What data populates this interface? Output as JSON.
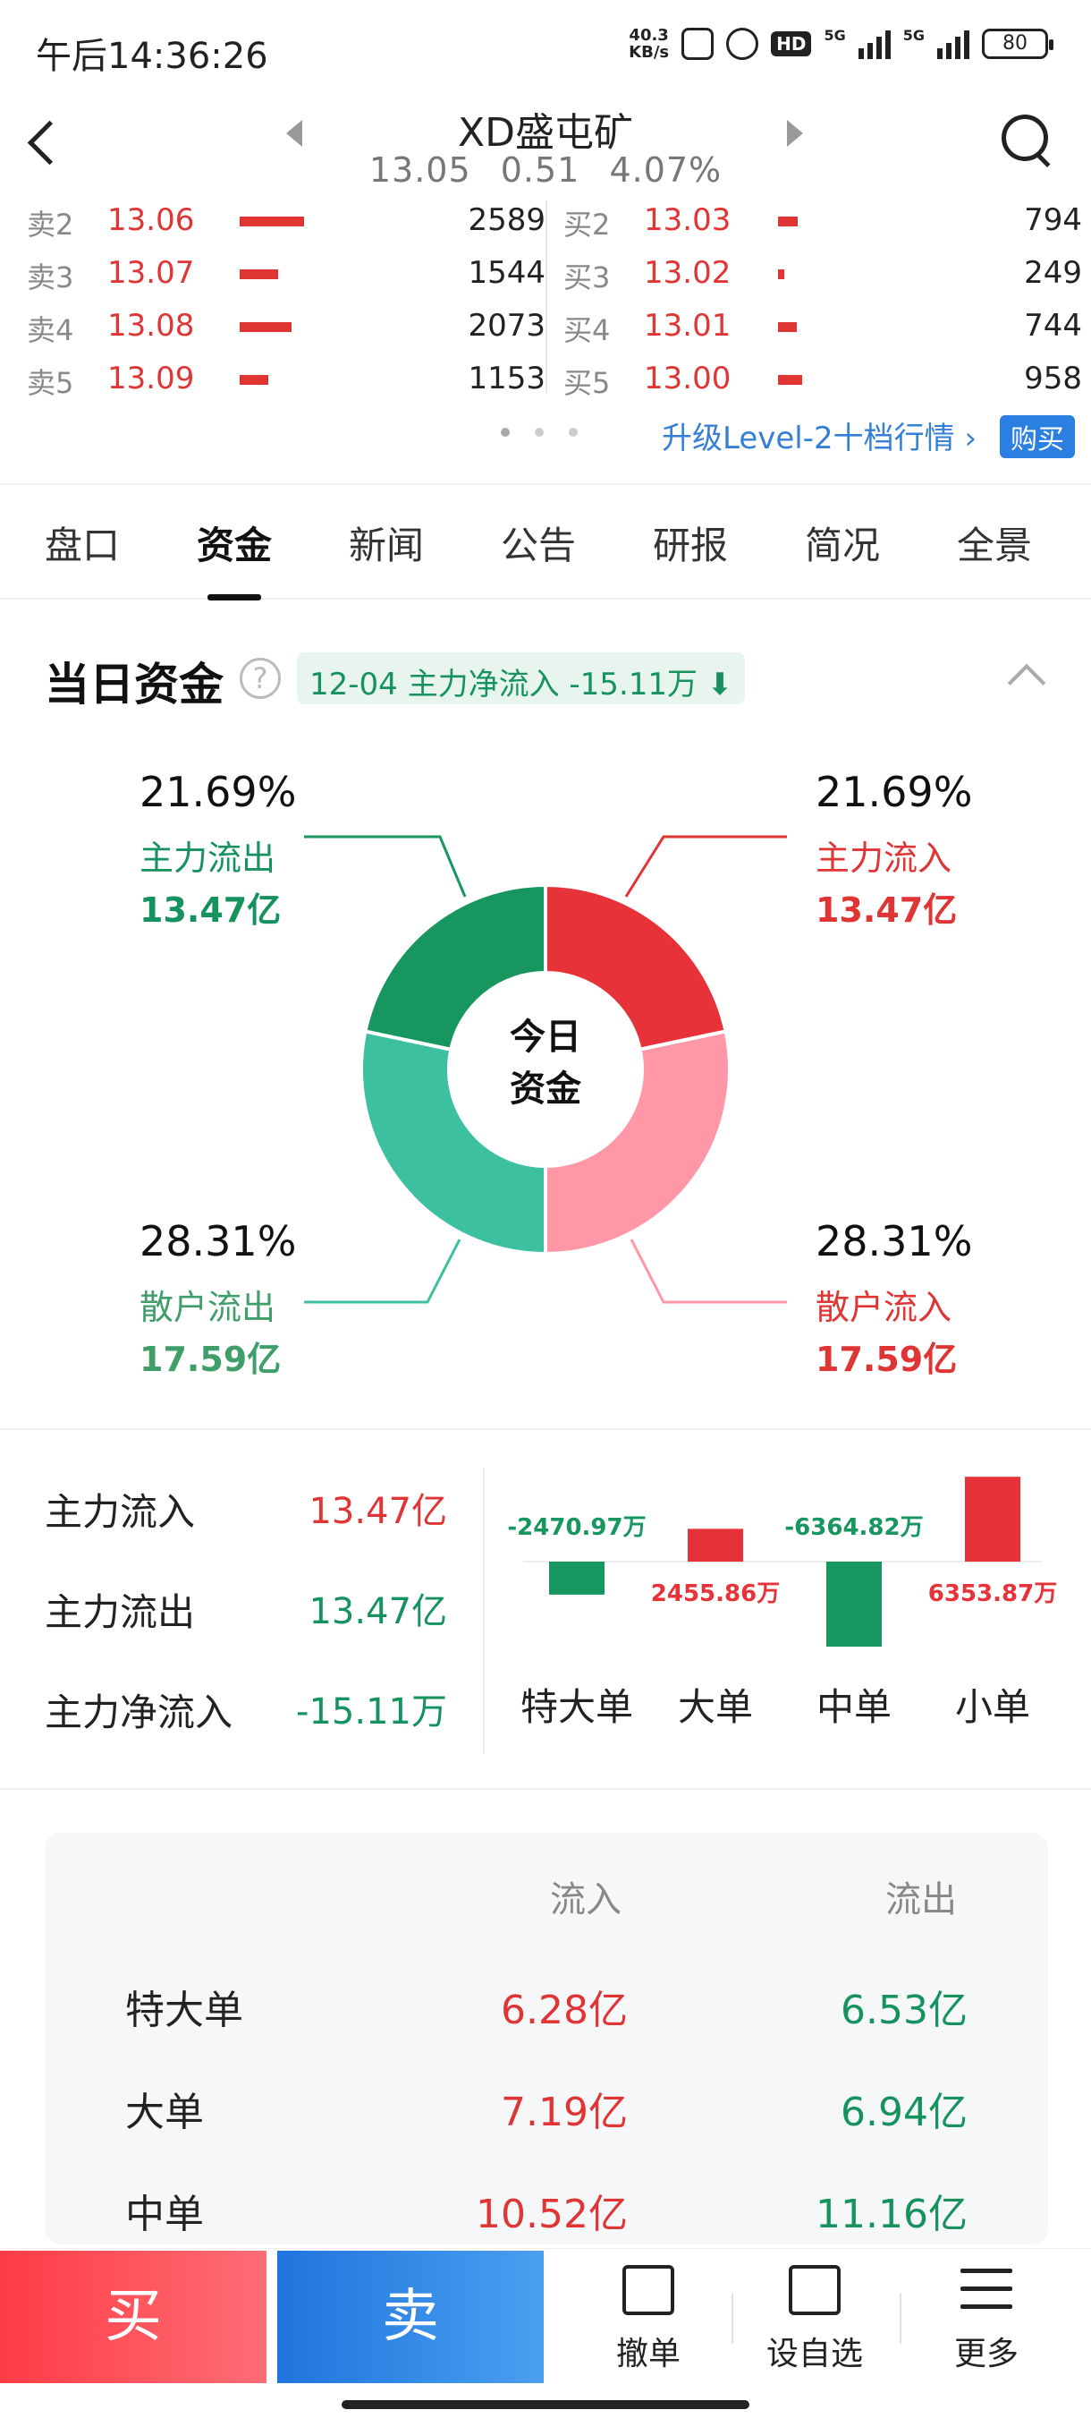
{
  "status": {
    "time": "午后14:36:26",
    "speed_top": "40.3",
    "speed_bottom": "KB/s",
    "hd": "HD",
    "net1": "5G",
    "net2": "5G",
    "battery": "80"
  },
  "header": {
    "stock_name": "XD盛屯矿",
    "price": "13.05",
    "change": "0.51",
    "change_pct": "4.07%"
  },
  "orderbook": {
    "sell": [
      {
        "label": "卖2",
        "price": "13.06",
        "volume": "2589",
        "bar": 0.72
      },
      {
        "label": "卖3",
        "price": "13.07",
        "volume": "1544",
        "bar": 0.43
      },
      {
        "label": "卖4",
        "price": "13.08",
        "volume": "2073",
        "bar": 0.58
      },
      {
        "label": "卖5",
        "price": "13.09",
        "volume": "1153",
        "bar": 0.32
      }
    ],
    "buy": [
      {
        "label": "买2",
        "price": "13.03",
        "volume": "794",
        "bar": 0.22
      },
      {
        "label": "买3",
        "price": "13.02",
        "volume": "249",
        "bar": 0.07
      },
      {
        "label": "买4",
        "price": "13.01",
        "volume": "744",
        "bar": 0.21
      },
      {
        "label": "买5",
        "price": "13.00",
        "volume": "958",
        "bar": 0.27
      }
    ],
    "level2_text": "升级Level-2十档行情 ›",
    "buy_tag": "购买"
  },
  "tabs": [
    "盘口",
    "资金",
    "新闻",
    "公告",
    "研报",
    "简况",
    "全景"
  ],
  "active_tab": 1,
  "section": {
    "title": "当日资金",
    "help_icon": "help-circle-icon",
    "net_badge": "12-04 主力净流入 -15.11万 ⬇"
  },
  "chart_data": [
    {
      "type": "pie",
      "center_label": [
        "今日",
        "资金"
      ],
      "slices": [
        {
          "pct_label": "21.69%",
          "name": "主力流入",
          "amount": "13.47亿",
          "value": 21.69,
          "color": "#e8323a"
        },
        {
          "pct_label": "28.31%",
          "name": "散户流入",
          "amount": "17.59亿",
          "value": 28.31,
          "color": "#ff97a6"
        },
        {
          "pct_label": "28.31%",
          "name": "散户流出",
          "amount": "17.59亿",
          "value": 28.31,
          "color": "#3cc0a0"
        },
        {
          "pct_label": "21.69%",
          "name": "主力流出",
          "amount": "13.47亿",
          "value": 21.69,
          "color": "#179660"
        }
      ]
    },
    {
      "type": "bar",
      "categories": [
        "特大单",
        "大单",
        "中单",
        "小单"
      ],
      "values": [
        -2470.97,
        2455.86,
        -6364.82,
        6353.87
      ],
      "value_labels": [
        "-2470.97万",
        "2455.86万",
        "-6364.82万",
        "6353.87万"
      ],
      "colors": {
        "positive": "#e8323a",
        "negative": "#179660"
      }
    }
  ],
  "summary": [
    {
      "label": "主力流入",
      "value": "13.47亿"
    },
    {
      "label": "主力流出",
      "value": "13.47亿"
    },
    {
      "label": "主力净流入",
      "value": "-15.11万"
    }
  ],
  "flow_table": {
    "headers": [
      "流入",
      "流出"
    ],
    "rows": [
      {
        "label": "特大单",
        "in": "6.28亿",
        "out": "6.53亿"
      },
      {
        "label": "大单",
        "in": "7.19亿",
        "out": "6.94亿"
      },
      {
        "label": "中单",
        "in": "10.52亿",
        "out": "11.16亿"
      }
    ]
  },
  "bottom": {
    "buy": "买",
    "sell": "卖",
    "cancel": "撤单",
    "watchlist": "设自选",
    "more": "更多"
  }
}
